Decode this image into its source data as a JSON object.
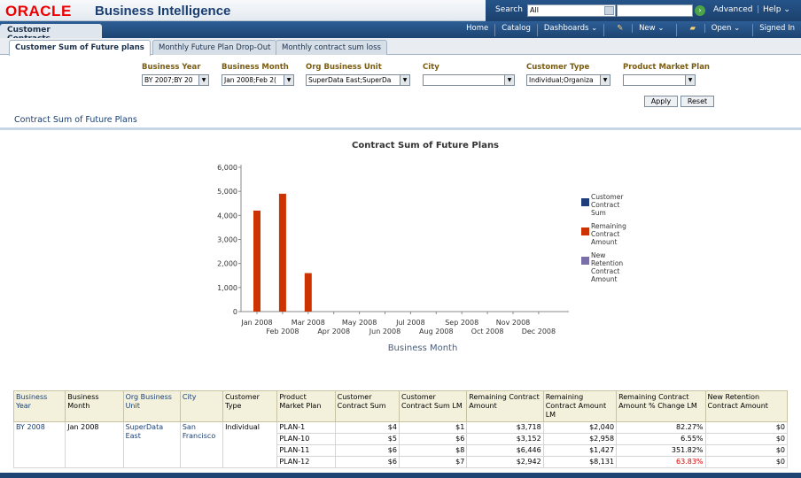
{
  "header": {
    "logo": "ORACLE",
    "product": "Business Intelligence",
    "search_label": "Search",
    "search_scope": "All",
    "advanced": "Advanced",
    "help": "Help ⌄"
  },
  "nav": {
    "dashboard_tab": "Customer Contracts",
    "links": [
      "Home",
      "Catalog",
      "Dashboards ⌄",
      "New ⌄",
      "Open ⌄",
      "Signed In"
    ]
  },
  "subtabs": [
    "Customer Sum of Future plans",
    "Monthly Future Plan Drop-Out",
    "Monthly contract sum loss"
  ],
  "prompts": [
    {
      "label": "Business Year",
      "value": "BY 2007;BY 20"
    },
    {
      "label": "Business Month",
      "value": "Jan 2008;Feb 2("
    },
    {
      "label": "Org Business Unit",
      "value": "SuperData East;SuperDa"
    },
    {
      "label": "City",
      "value": ""
    },
    {
      "label": "Customer Type",
      "value": "Individual;Organiza"
    },
    {
      "label": "Product Market Plan",
      "value": ""
    }
  ],
  "buttons": {
    "apply": "Apply",
    "reset": "Reset"
  },
  "section_title": "Contract Sum of Future Plans",
  "chart_data": {
    "type": "bar",
    "title": "Contract Sum of Future Plans",
    "xlabel": "Business Month",
    "ylabel": "",
    "ylim": [
      0,
      6000
    ],
    "yticks": [
      "0",
      "1,000",
      "2,000",
      "3,000",
      "4,000",
      "5,000",
      "6,000"
    ],
    "categories": [
      "Jan 2008",
      "Feb 2008",
      "Mar 2008",
      "Apr 2008",
      "May 2008",
      "Jun 2008",
      "Jul 2008",
      "Aug 2008",
      "Sep 2008",
      "Oct 2008",
      "Nov 2008",
      "Dec 2008"
    ],
    "series": [
      {
        "name": "Customer Contract Sum",
        "color": "#1f3d7a",
        "values": [
          0,
          0,
          0,
          0,
          0,
          0,
          0,
          0,
          0,
          0,
          0,
          0
        ]
      },
      {
        "name": "Remaining Contract Amount",
        "color": "#cc3300",
        "values": [
          4200,
          4900,
          1600,
          0,
          0,
          0,
          0,
          0,
          0,
          0,
          0,
          0
        ]
      },
      {
        "name": "New Retention Contract Amount",
        "color": "#7a6fa8",
        "values": [
          0,
          0,
          0,
          0,
          0,
          0,
          0,
          0,
          0,
          0,
          0,
          0
        ]
      }
    ],
    "legend_position": "right",
    "grid": false
  },
  "table": {
    "headers": [
      "Business Year",
      "Business Month",
      "Org Business Unit",
      "City",
      "Customer Type",
      "Product Market Plan",
      "Customer Contract Sum",
      "Customer Contract Sum LM",
      "Remaining Contract Amount",
      "Remaining Contract Amount LM",
      "Remaining Contract Amount % Change LM",
      "New Retention Contract Amount"
    ],
    "group": {
      "year": "BY 2008",
      "month": "Jan 2008",
      "unit": "SuperData East",
      "city": "San Francisco",
      "type": "Individual"
    },
    "rows": [
      {
        "plan": "PLAN-1",
        "sum": "$4",
        "sum_lm": "$1",
        "rem": "$3,718",
        "rem_lm": "$2,040",
        "pct": "82.27%",
        "pct_red": false,
        "newret": "$0"
      },
      {
        "plan": "PLAN-10",
        "sum": "$5",
        "sum_lm": "$6",
        "rem": "$3,152",
        "rem_lm": "$2,958",
        "pct": "6.55%",
        "pct_red": false,
        "newret": "$0"
      },
      {
        "plan": "PLAN-11",
        "sum": "$6",
        "sum_lm": "$8",
        "rem": "$6,446",
        "rem_lm": "$1,427",
        "pct": "351.82%",
        "pct_red": false,
        "newret": "$0"
      },
      {
        "plan": "PLAN-12",
        "sum": "$6",
        "sum_lm": "$7",
        "rem": "$2,942",
        "rem_lm": "$8,131",
        "pct": "63.83%",
        "pct_red": true,
        "newret": "$0"
      }
    ]
  }
}
